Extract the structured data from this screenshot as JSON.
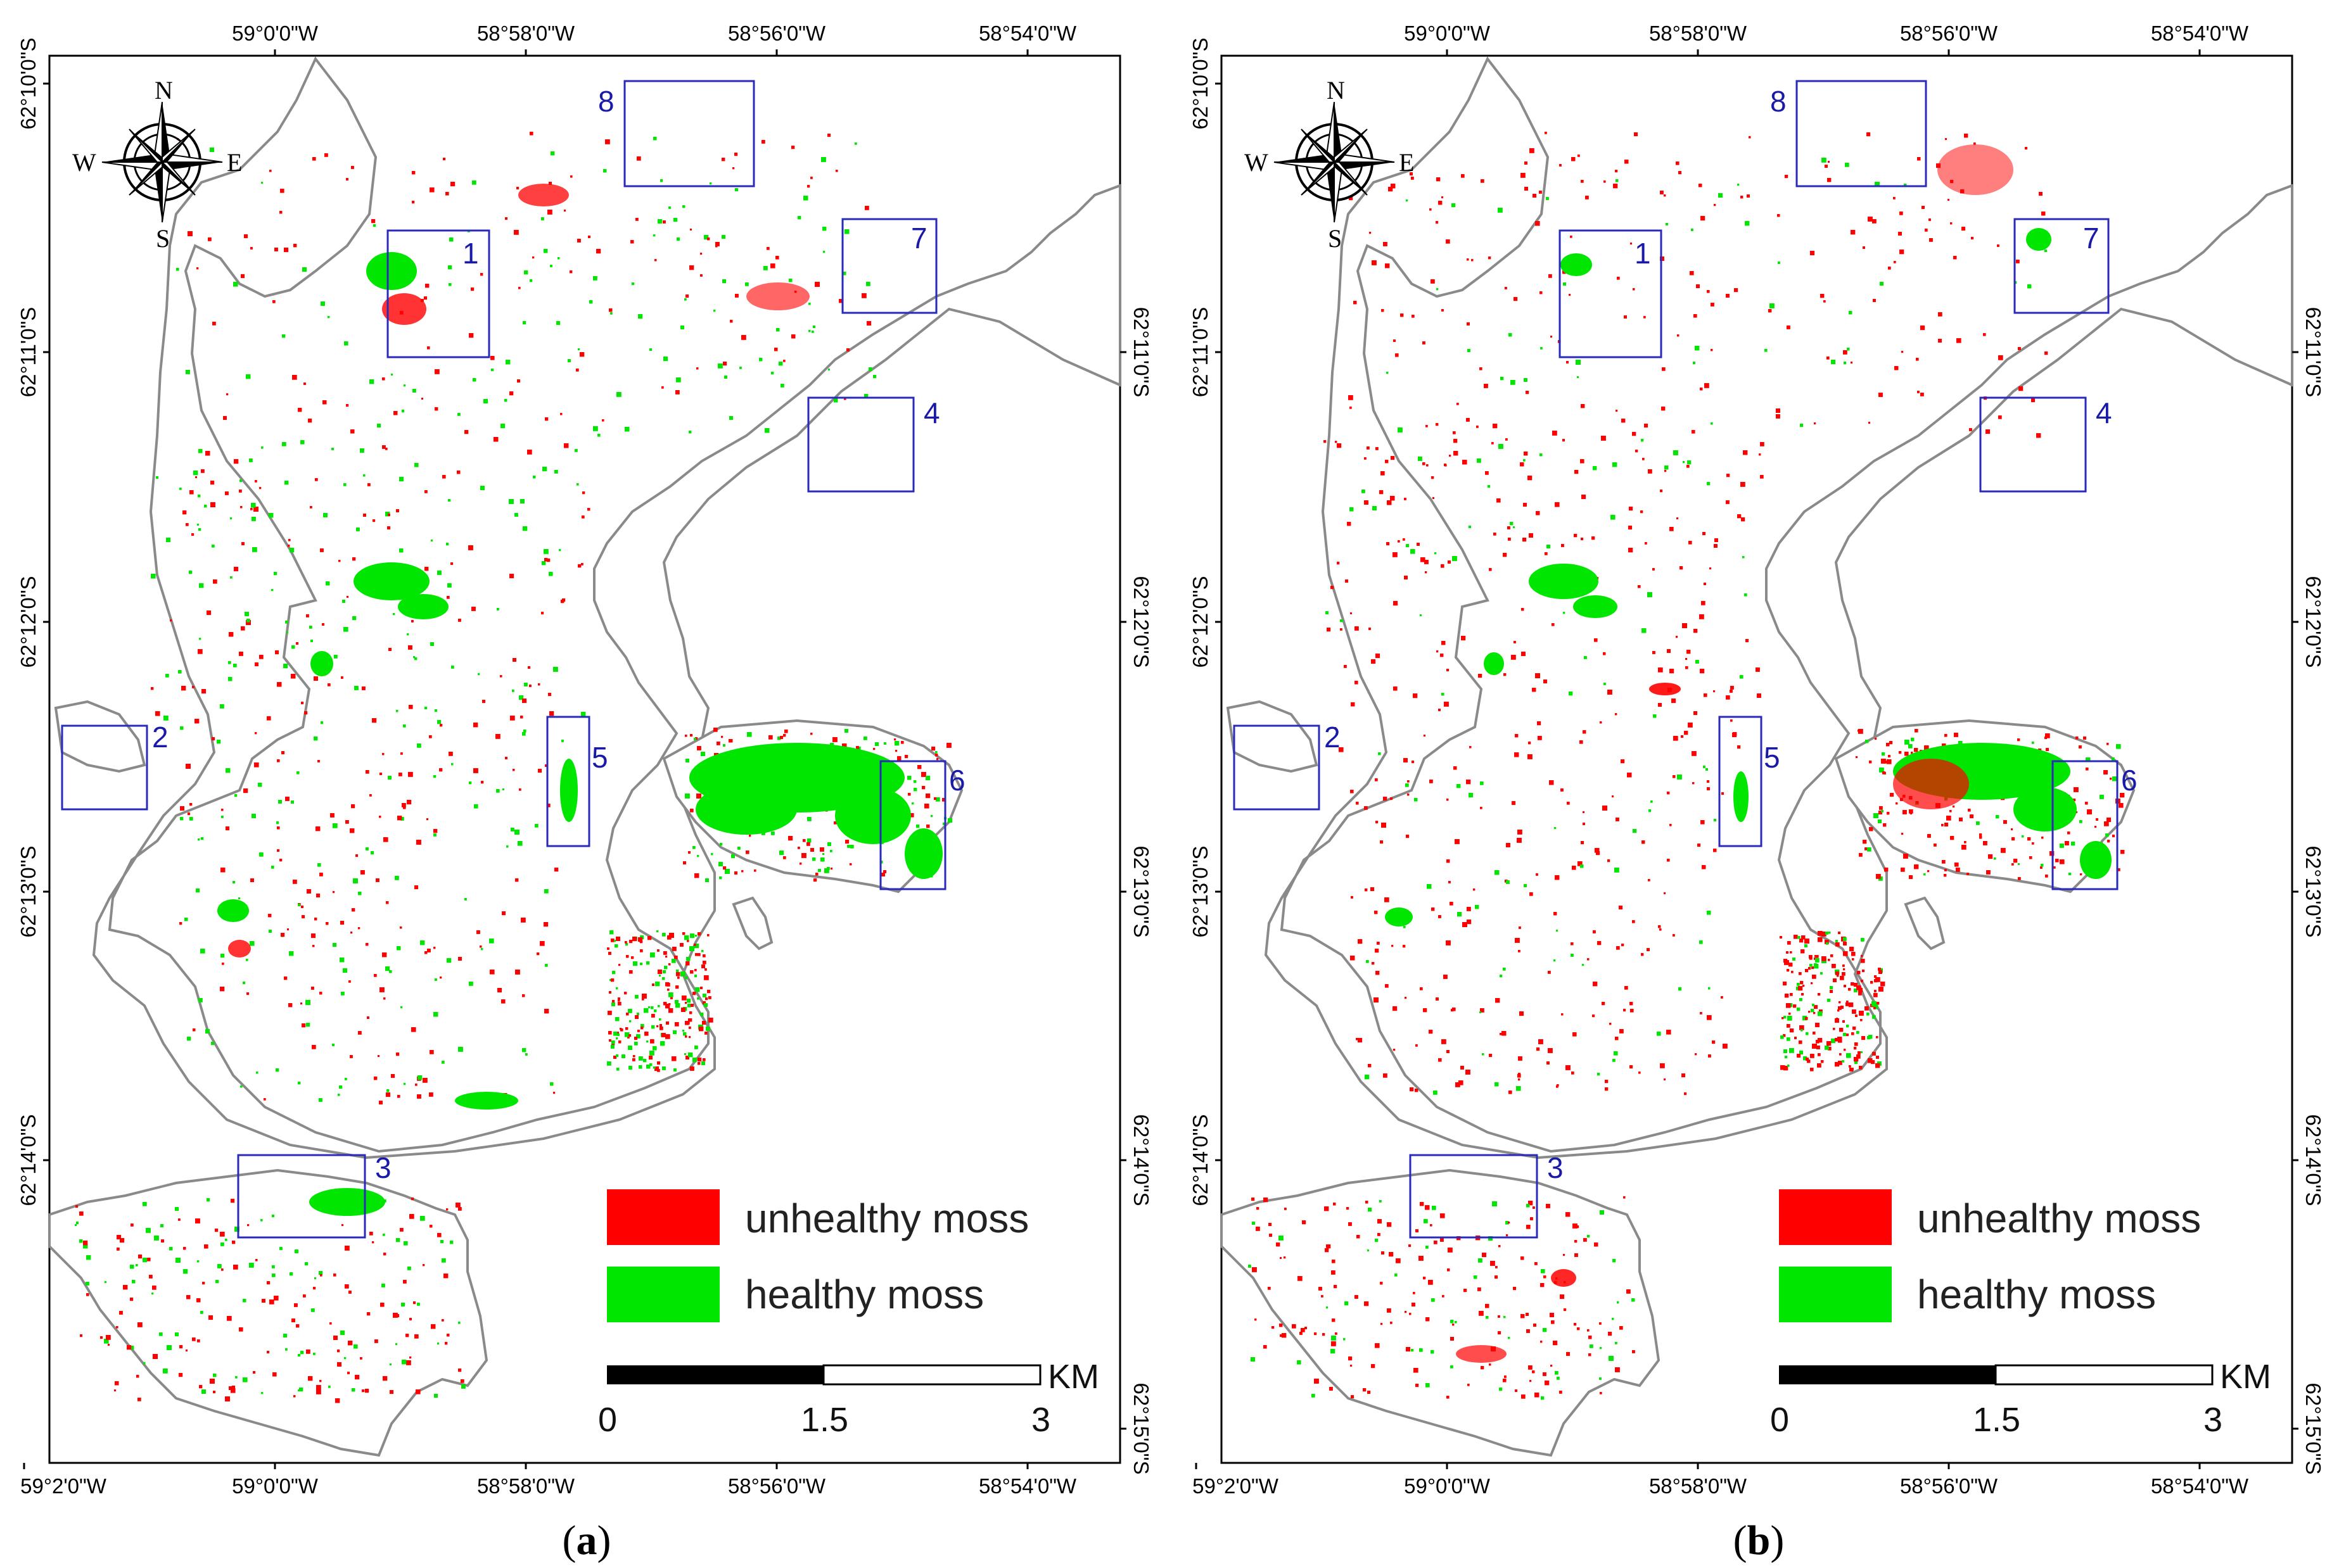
{
  "figure": {
    "panels": [
      {
        "caption_open": "(",
        "caption_letter": "a",
        "caption_close": ")",
        "lon_top": [
          "59°0'0\"W",
          "58°58'0\"W",
          "58°56'0\"W",
          "58°54'0\"W"
        ],
        "lon_bottom": [
          "59°2'0\"W",
          "59°0'0\"W",
          "58°58'0\"W",
          "58°56'0\"W",
          "58°54'0\"W"
        ],
        "lat_left": [
          "62°10'0\"S",
          "62°11'0\"S",
          "62°12'0\"S",
          "62°13'0\"S",
          "62°14'0\"S"
        ],
        "lat_right": [
          "62°11'0\"S",
          "62°12'0\"S",
          "62°13'0\"S",
          "62°14'0\"S",
          "62°15'0\"S"
        ],
        "boxes": [
          "1",
          "2",
          "3",
          "4",
          "5",
          "6",
          "7",
          "8"
        ],
        "compass": {
          "n": "N",
          "s": "S",
          "e": "E",
          "w": "W"
        },
        "legend": {
          "unhealthy": "unhealthy moss",
          "healthy": "healthy moss"
        },
        "scale": {
          "unit": "KM",
          "zero": "0",
          "mid": "1.5",
          "max": "3"
        }
      },
      {
        "caption_open": "(",
        "caption_letter": "b",
        "caption_close": ")",
        "lon_top": [
          "59°0'0\"W",
          "58°58'0\"W",
          "58°56'0\"W",
          "58°54'0\"W"
        ],
        "lon_bottom": [
          "59°2'0\"W",
          "59°0'0\"W",
          "58°58'0\"W",
          "58°56'0\"W",
          "58°54'0\"W"
        ],
        "lat_left": [
          "62°10'0\"S",
          "62°11'0\"S",
          "62°12'0\"S",
          "62°13'0\"S",
          "62°14'0\"S"
        ],
        "lat_right": [
          "62°11'0\"S",
          "62°12'0\"S",
          "62°13'0\"S",
          "62°14'0\"S",
          "62°15'0\"S"
        ],
        "boxes": [
          "1",
          "2",
          "3",
          "4",
          "5",
          "6",
          "7",
          "8"
        ],
        "compass": {
          "n": "N",
          "s": "S",
          "e": "E",
          "w": "W"
        },
        "legend": {
          "unhealthy": "unhealthy moss",
          "healthy": "healthy moss"
        },
        "scale": {
          "unit": "KM",
          "zero": "0",
          "mid": "1.5",
          "max": "3"
        }
      }
    ],
    "colors": {
      "unhealthy": "#ff0000",
      "healthy": "#00e600",
      "box": "#2a2ab8",
      "coast": "#808080"
    }
  }
}
